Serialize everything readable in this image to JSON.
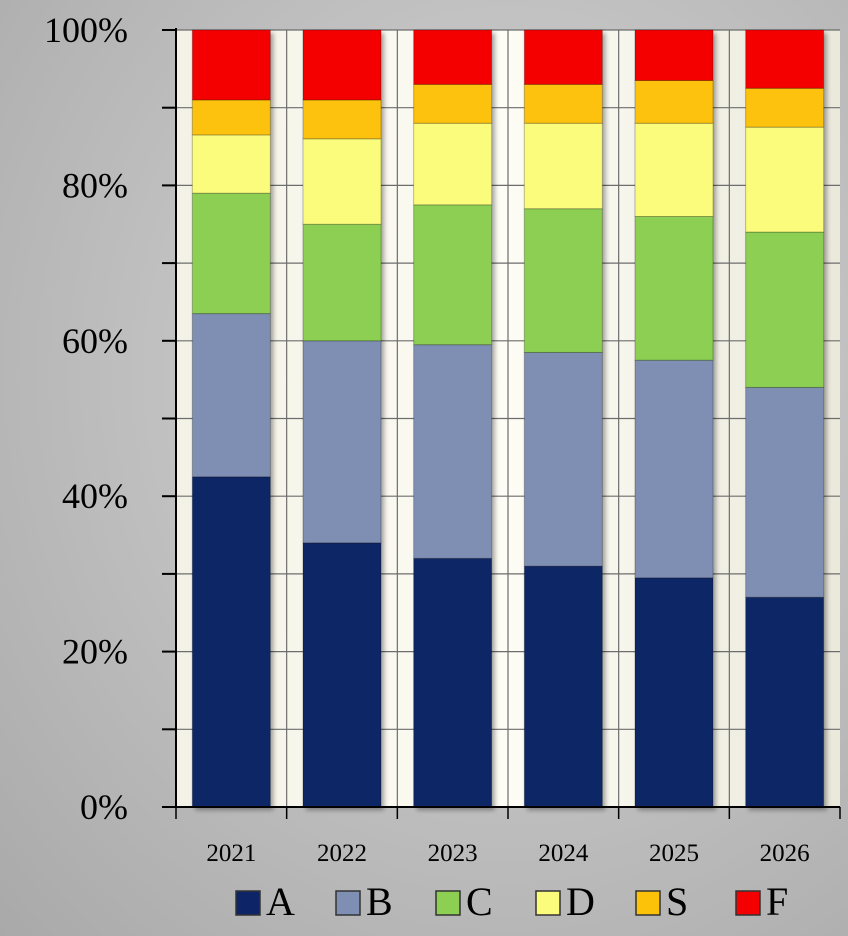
{
  "chart_data": {
    "type": "bar",
    "stacked": true,
    "percent": true,
    "categories": [
      "2021",
      "2022",
      "2023",
      "2024",
      "2025",
      "2026"
    ],
    "series": [
      {
        "name": "A",
        "color": "#0d2566",
        "values": [
          42.5,
          34.0,
          32.0,
          31.0,
          29.5,
          27.0
        ]
      },
      {
        "name": "B",
        "color": "#7f8fb3",
        "values": [
          21.0,
          26.0,
          27.5,
          27.5,
          28.0,
          27.0
        ]
      },
      {
        "name": "C",
        "color": "#8ccf52",
        "values": [
          15.5,
          15.0,
          18.0,
          18.5,
          18.5,
          20.0
        ]
      },
      {
        "name": "D",
        "color": "#fcfc7c",
        "values": [
          7.5,
          11.0,
          10.5,
          11.0,
          12.0,
          13.5
        ]
      },
      {
        "name": "S",
        "color": "#fcc20a",
        "values": [
          4.5,
          5.0,
          5.0,
          5.0,
          5.5,
          5.0
        ]
      },
      {
        "name": "F",
        "color": "#f40000",
        "values": [
          9.0,
          9.0,
          7.0,
          7.0,
          6.5,
          7.5
        ]
      }
    ],
    "y_ticks": [
      "0%",
      "20%",
      "40%",
      "60%",
      "80%",
      "100%"
    ],
    "ylim": [
      0,
      100
    ],
    "grid": true,
    "legend_position": "bottom"
  }
}
